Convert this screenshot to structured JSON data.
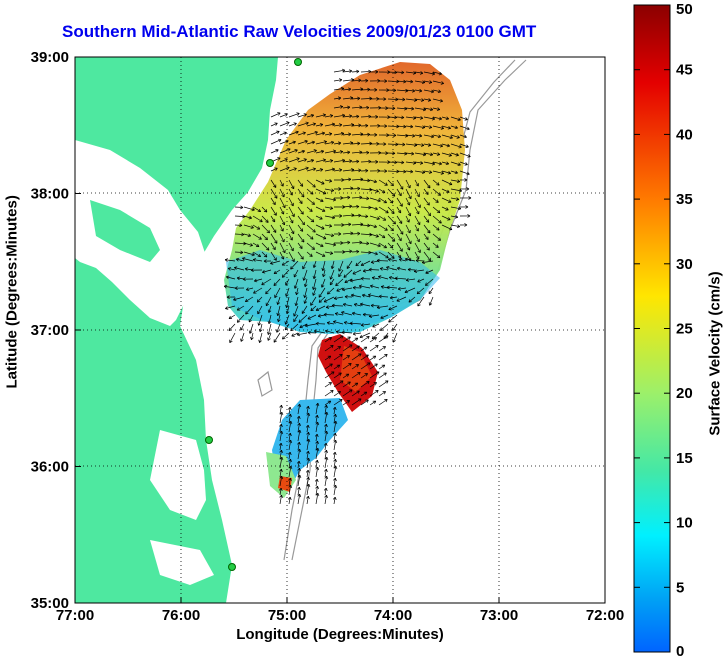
{
  "title": "Southern Mid-Atlantic Raw Velocities 2009/01/23 0100 GMT",
  "x_axis": {
    "label": "Longitude (Degrees:Minutes)",
    "ticks": [
      "77:00",
      "76:00",
      "75:00",
      "74:00",
      "73:00",
      "72:00"
    ]
  },
  "y_axis": {
    "label": "Latitude (Degrees:Minutes)",
    "ticks": [
      "39:00",
      "38:00",
      "37:00",
      "36:00",
      "35:00"
    ]
  },
  "colorbar": {
    "label": "Surface Velocity (cm/s)",
    "ticks": [
      "50",
      "45",
      "40",
      "35",
      "30",
      "25",
      "20",
      "15",
      "10",
      "5",
      "0"
    ],
    "min": 0,
    "max": 50
  },
  "colors": {
    "land": "#4ee8a0",
    "title": "#0000ee",
    "bathymetry": "#999999",
    "grid": "#000000"
  },
  "map": {
    "lon_range": [
      -77,
      -72
    ],
    "lat_range": [
      35,
      39
    ],
    "grid": "dotted",
    "stations": [
      "station-1",
      "station-2",
      "station-3",
      "station-4",
      "station-5"
    ]
  }
}
